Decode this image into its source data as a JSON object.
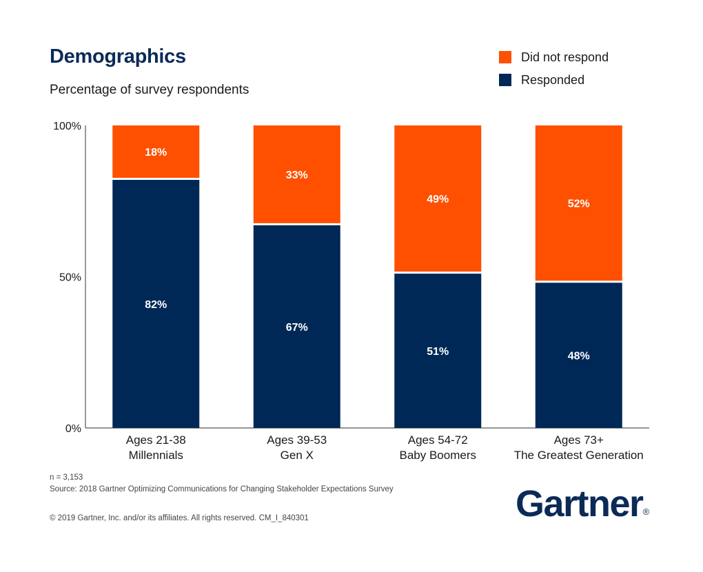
{
  "header": {
    "title": "Demographics",
    "subtitle": "Percentage of survey respondents"
  },
  "colors": {
    "did_not_respond": "#fe5000",
    "responded": "#002856",
    "axis": "#555555"
  },
  "chart_data": {
    "type": "bar",
    "stacked": true,
    "categories": [
      [
        "Ages 21-38",
        "Millennials"
      ],
      [
        "Ages 39-53",
        "Gen X"
      ],
      [
        "Ages 54-72",
        "Baby Boomers"
      ],
      [
        "Ages 73+",
        "The Greatest Generation"
      ]
    ],
    "series": [
      {
        "name": "Responded",
        "values": [
          82,
          67,
          51,
          48
        ],
        "labels": [
          "82%",
          "67%",
          "51%",
          "48%"
        ]
      },
      {
        "name": "Did not respond",
        "values": [
          18,
          33,
          49,
          52
        ],
        "labels": [
          "18%",
          "33%",
          "49%",
          "52%"
        ]
      }
    ],
    "y_ticks": [
      {
        "value": 100,
        "label": "100%"
      },
      {
        "value": 50,
        "label": "50%"
      },
      {
        "value": 0,
        "label": "0%"
      }
    ],
    "ylim": [
      0,
      100
    ],
    "legend_position": "top-right",
    "legend_order": [
      "Did not respond",
      "Responded"
    ],
    "grid": false
  },
  "footer": {
    "n": "n = 3,153",
    "source": "Source: 2018 Gartner Optimizing Communications for Changing Stakeholder Expectations Survey",
    "copyright": "© 2019 Gartner, Inc. and/or its affiliates. All rights reserved. CM_I_840301"
  },
  "brand": {
    "logo_text": "Gartner",
    "logo_mark": "®"
  }
}
